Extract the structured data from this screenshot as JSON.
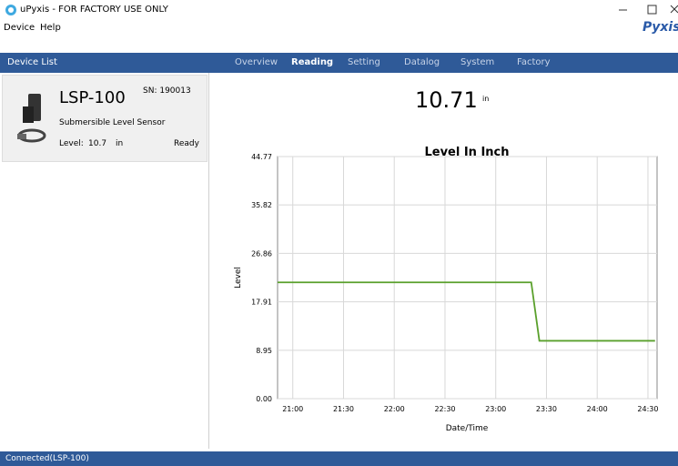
{
  "window": {
    "title": "uPyxis - FOR FACTORY USE ONLY",
    "logo": "Pyxis"
  },
  "menu": [
    "Device",
    "Help"
  ],
  "sidebar": {
    "header": "Device List",
    "device": {
      "model": "LSP-100",
      "serial": "SN: 190013",
      "description": "Submersible Level Sensor",
      "level_label": "Level:",
      "level_value": "10.7",
      "level_unit": "in",
      "state": "Ready"
    }
  },
  "tabs": [
    "Overview",
    "Reading",
    "Setting",
    "Datalog",
    "System",
    "Factory"
  ],
  "active_tab": 1,
  "reading": {
    "value": "10.71",
    "unit": "in"
  },
  "status": "Connected(LSP-100)",
  "chart_data": {
    "type": "line",
    "title": "Level In Inch",
    "x_label": "Date/Time",
    "y_label": "Level",
    "series": [
      {
        "color": "#5aa02c",
        "x": [
          20.85,
          23.35,
          23.43,
          24.57
        ],
        "values": [
          21.5,
          21.5,
          10.7,
          10.7
        ]
      }
    ],
    "xlim": [
      20.85,
      24.59
    ],
    "xticks": [
      {
        "value": 21,
        "label": "21:00"
      },
      {
        "value": 21.5,
        "label": "21:30"
      },
      {
        "value": 22,
        "label": "22:00"
      },
      {
        "value": 22.5,
        "label": "22:30"
      },
      {
        "value": 23,
        "label": "23:00"
      },
      {
        "value": 23.5,
        "label": "23:30"
      },
      {
        "value": 24,
        "label": "24:00"
      },
      {
        "value": 24.5,
        "label": "24:30"
      }
    ],
    "ylim": [
      0,
      44.77
    ],
    "yticks": [
      {
        "value": 0,
        "label": "0.00"
      },
      8.95,
      17.91,
      26.86,
      35.82,
      44.77
    ],
    "grid": true
  }
}
